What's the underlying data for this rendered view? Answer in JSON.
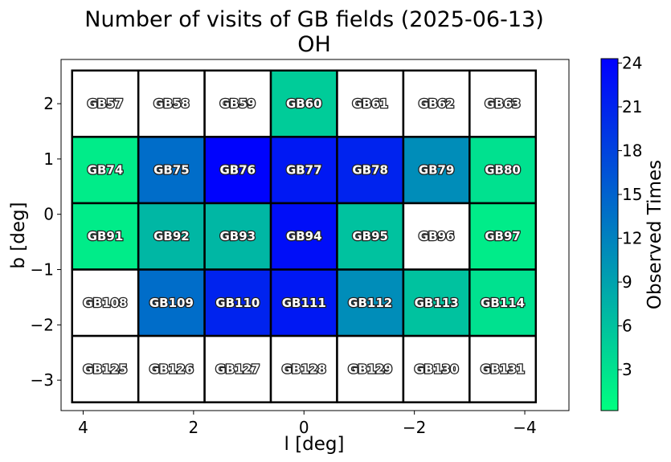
{
  "chart_data": {
    "type": "heatmap",
    "title": "Number of visits of GB fields (2025-06-13)",
    "subtitle": "OH",
    "xlabel": "l [deg]",
    "ylabel": "b [deg]",
    "xlim": [
      4.4,
      -4.8
    ],
    "ylim": [
      -3.55,
      2.8
    ],
    "xticks": [
      4,
      2,
      0,
      -2,
      -4
    ],
    "xtick_labels": [
      "4",
      "2",
      "0",
      "−2",
      "−4"
    ],
    "yticks": [
      2,
      1,
      0,
      -1,
      -2,
      -3
    ],
    "ytick_labels": [
      "2",
      "1",
      "0",
      "−1",
      "−2",
      "−3"
    ],
    "cell_size_deg": 1.2,
    "colorbar": {
      "label": "Observed Times",
      "range": [
        0.2,
        24.3
      ],
      "ticks": [
        3,
        6,
        9,
        12,
        15,
        18,
        21,
        24
      ],
      "colors": [
        "#00ff80",
        "#0000ff"
      ]
    },
    "fields": [
      {
        "name": "GB57",
        "l": 3.6,
        "b": 2.0,
        "visits": 0
      },
      {
        "name": "GB58",
        "l": 2.4,
        "b": 2.0,
        "visits": 0
      },
      {
        "name": "GB59",
        "l": 1.2,
        "b": 2.0,
        "visits": 0
      },
      {
        "name": "GB60",
        "l": 0.0,
        "b": 2.0,
        "visits": 5
      },
      {
        "name": "GB61",
        "l": -1.2,
        "b": 2.0,
        "visits": 0
      },
      {
        "name": "GB62",
        "l": -2.4,
        "b": 2.0,
        "visits": 0
      },
      {
        "name": "GB63",
        "l": -3.6,
        "b": 2.0,
        "visits": 0
      },
      {
        "name": "GB74",
        "l": 3.6,
        "b": 0.8,
        "visits": 2
      },
      {
        "name": "GB75",
        "l": 2.4,
        "b": 0.8,
        "visits": 14
      },
      {
        "name": "GB76",
        "l": 1.2,
        "b": 0.8,
        "visits": 24
      },
      {
        "name": "GB77",
        "l": 0.0,
        "b": 0.8,
        "visits": 22
      },
      {
        "name": "GB78",
        "l": -1.2,
        "b": 0.8,
        "visits": 21
      },
      {
        "name": "GB79",
        "l": -2.4,
        "b": 0.8,
        "visits": 11
      },
      {
        "name": "GB80",
        "l": -3.6,
        "b": 0.8,
        "visits": 3
      },
      {
        "name": "GB91",
        "l": 3.6,
        "b": -0.4,
        "visits": 2
      },
      {
        "name": "GB92",
        "l": 2.4,
        "b": -0.4,
        "visits": 7
      },
      {
        "name": "GB93",
        "l": 1.2,
        "b": -0.4,
        "visits": 7
      },
      {
        "name": "GB94",
        "l": 0.0,
        "b": -0.4,
        "visits": 23
      },
      {
        "name": "GB95",
        "l": -1.2,
        "b": -0.4,
        "visits": 6
      },
      {
        "name": "GB96",
        "l": -2.4,
        "b": -0.4,
        "visits": 0
      },
      {
        "name": "GB97",
        "l": -3.6,
        "b": -0.4,
        "visits": 2
      },
      {
        "name": "GB108",
        "l": 3.6,
        "b": -1.6,
        "visits": 0
      },
      {
        "name": "GB109",
        "l": 2.4,
        "b": -1.6,
        "visits": 14
      },
      {
        "name": "GB110",
        "l": 1.2,
        "b": -1.6,
        "visits": 21
      },
      {
        "name": "GB111",
        "l": 0.0,
        "b": -1.6,
        "visits": 22
      },
      {
        "name": "GB112",
        "l": -1.2,
        "b": -1.6,
        "visits": 11
      },
      {
        "name": "GB113",
        "l": -2.4,
        "b": -1.6,
        "visits": 6
      },
      {
        "name": "GB114",
        "l": -3.6,
        "b": -1.6,
        "visits": 3
      },
      {
        "name": "GB125",
        "l": 3.6,
        "b": -2.8,
        "visits": 0
      },
      {
        "name": "GB126",
        "l": 2.4,
        "b": -2.8,
        "visits": 0
      },
      {
        "name": "GB127",
        "l": 1.2,
        "b": -2.8,
        "visits": 0
      },
      {
        "name": "GB128",
        "l": 0.0,
        "b": -2.8,
        "visits": 0
      },
      {
        "name": "GB129",
        "l": -1.2,
        "b": -2.8,
        "visits": 0
      },
      {
        "name": "GB130",
        "l": -2.4,
        "b": -2.8,
        "visits": 0
      },
      {
        "name": "GB131",
        "l": -3.6,
        "b": -2.8,
        "visits": 0
      }
    ]
  }
}
